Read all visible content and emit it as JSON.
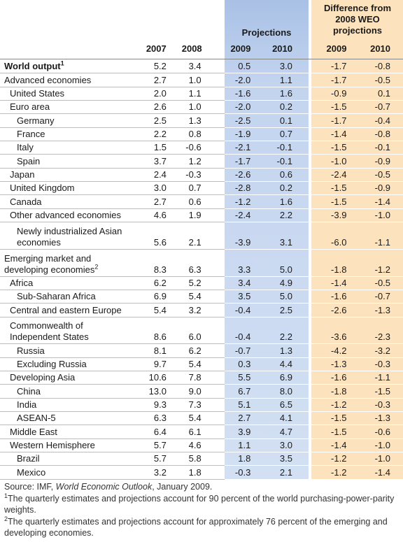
{
  "table": {
    "group_headers": {
      "projections": "Projections",
      "difference": "Difference from 2008 WEO projections"
    },
    "columns": [
      "2007",
      "2008",
      "2009",
      "2010",
      "2009",
      "2010"
    ],
    "rows": [
      {
        "label": "World output",
        "note": "1",
        "values": [
          "5.2",
          "3.4",
          "0.5",
          "3.0",
          "-1.7",
          "-0.8"
        ]
      },
      {
        "label": "Advanced economies",
        "values": [
          "2.7",
          "1.0",
          "-2.0",
          "1.1",
          "-1.7",
          "-0.5"
        ]
      },
      {
        "label": "United States",
        "values": [
          "2.0",
          "1.1",
          "-1.6",
          "1.6",
          "-0.9",
          "0.1"
        ]
      },
      {
        "label": "Euro area",
        "values": [
          "2.6",
          "1.0",
          "-2.0",
          "0.2",
          "-1.5",
          "-0.7"
        ]
      },
      {
        "label": "Germany",
        "values": [
          "2.5",
          "1.3",
          "-2.5",
          "0.1",
          "-1.7",
          "-0.4"
        ]
      },
      {
        "label": "France",
        "values": [
          "2.2",
          "0.8",
          "-1.9",
          "0.7",
          "-1.4",
          "-0.8"
        ]
      },
      {
        "label": "Italy",
        "values": [
          "1.5",
          "-0.6",
          "-2.1",
          "-0.1",
          "-1.5",
          "-0.1"
        ]
      },
      {
        "label": "Spain",
        "values": [
          "3.7",
          "1.2",
          "-1.7",
          "-0.1",
          "-1.0",
          "-0.9"
        ]
      },
      {
        "label": "Japan",
        "values": [
          "2.4",
          "-0.3",
          "-2.6",
          "0.6",
          "-2.4",
          "-0.5"
        ]
      },
      {
        "label": "United Kingdom",
        "values": [
          "3.0",
          "0.7",
          "-2.8",
          "0.2",
          "-1.5",
          "-0.9"
        ]
      },
      {
        "label": "Canada",
        "values": [
          "2.7",
          "0.6",
          "-1.2",
          "1.6",
          "-1.5",
          "-1.4"
        ]
      },
      {
        "label": "Other advanced economies",
        "values": [
          "4.6",
          "1.9",
          "-2.4",
          "2.2",
          "-3.9",
          "-1.0"
        ]
      },
      {
        "label": "Newly industrialized Asian economies",
        "values": [
          "5.6",
          "2.1",
          "-3.9",
          "3.1",
          "-6.0",
          "-1.1"
        ]
      },
      {
        "label": "Emerging market and developing economies",
        "note": "2",
        "values": [
          "8.3",
          "6.3",
          "3.3",
          "5.0",
          "-1.8",
          "-1.2"
        ]
      },
      {
        "label": "Africa",
        "values": [
          "6.2",
          "5.2",
          "3.4",
          "4.9",
          "-1.4",
          "-0.5"
        ]
      },
      {
        "label": "Sub-Saharan Africa",
        "values": [
          "6.9",
          "5.4",
          "3.5",
          "5.0",
          "-1.6",
          "-0.7"
        ]
      },
      {
        "label": "Central and eastern Europe",
        "values": [
          "5.4",
          "3.2",
          "-0.4",
          "2.5",
          "-2.6",
          "-1.3"
        ]
      },
      {
        "label": "Commonwealth of Independent States",
        "values": [
          "8.6",
          "6.0",
          "-0.4",
          "2.2",
          "-3.6",
          "-2.3"
        ]
      },
      {
        "label": "Russia",
        "values": [
          "8.1",
          "6.2",
          "-0.7",
          "1.3",
          "-4.2",
          "-3.2"
        ]
      },
      {
        "label": "Excluding Russia",
        "values": [
          "9.7",
          "5.4",
          "0.3",
          "4.4",
          "-1.3",
          "-0.3"
        ]
      },
      {
        "label": "Developing Asia",
        "values": [
          "10.6",
          "7.8",
          "5.5",
          "6.9",
          "-1.6",
          "-1.1"
        ]
      },
      {
        "label": "China",
        "values": [
          "13.0",
          "9.0",
          "6.7",
          "8.0",
          "-1.8",
          "-1.5"
        ]
      },
      {
        "label": "India",
        "values": [
          "9.3",
          "7.3",
          "5.1",
          "6.5",
          "-1.2",
          "-0.3"
        ]
      },
      {
        "label": "ASEAN-5",
        "values": [
          "6.3",
          "5.4",
          "2.7",
          "4.1",
          "-1.5",
          "-1.3"
        ]
      },
      {
        "label": "Middle East",
        "values": [
          "6.4",
          "6.1",
          "3.9",
          "4.7",
          "-1.5",
          "-0.6"
        ]
      },
      {
        "label": "Western Hemisphere",
        "values": [
          "5.7",
          "4.6",
          "1.1",
          "3.0",
          "-1.4",
          "-1.0"
        ]
      },
      {
        "label": "Brazil",
        "values": [
          "5.7",
          "5.8",
          "1.8",
          "3.5",
          "-1.2",
          "-1.0"
        ]
      },
      {
        "label": "Mexico",
        "values": [
          "3.2",
          "1.8",
          "-0.3",
          "2.1",
          "-1.2",
          "-1.4"
        ]
      }
    ]
  },
  "footer": {
    "source_prefix": "Source: IMF, ",
    "source_title": "World Economic Outlook",
    "source_suffix": ", January 2009.",
    "notes": [
      {
        "marker": "1",
        "text": "The quarterly estimates and projections account for 90 percent of the world purchasing-power-parity weights."
      },
      {
        "marker": "2",
        "text": "The quarterly estimates and projections account for approximately 76 percent of the emerging and developing economies."
      }
    ]
  }
}
